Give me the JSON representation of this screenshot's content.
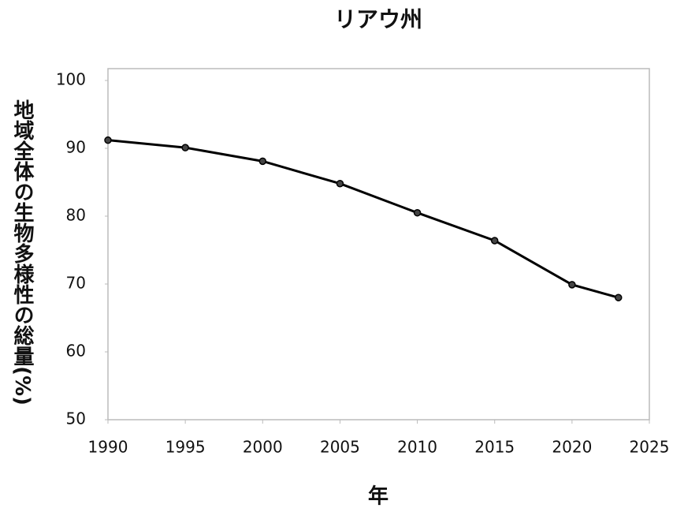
{
  "chart_data": {
    "type": "line",
    "title": "リアウ州",
    "x_label": "年",
    "y_label": "地域全体の生物多様性の総量(%)",
    "x": [
      1990,
      1995,
      2000,
      2005,
      2010,
      2015,
      2020,
      2023
    ],
    "series": [
      {
        "name": "生物多様性",
        "color": "#000000",
        "values": [
          91.2,
          90.1,
          88.1,
          84.8,
          80.5,
          76.4,
          69.9,
          68.0
        ]
      }
    ],
    "xlim": [
      1990,
      2025
    ],
    "xticks": [
      1990,
      1995,
      2000,
      2005,
      2010,
      2015,
      2020,
      2025
    ],
    "ylim": [
      50,
      100
    ],
    "yticks": [
      50,
      60,
      70,
      80,
      90,
      100
    ],
    "grid": false
  }
}
